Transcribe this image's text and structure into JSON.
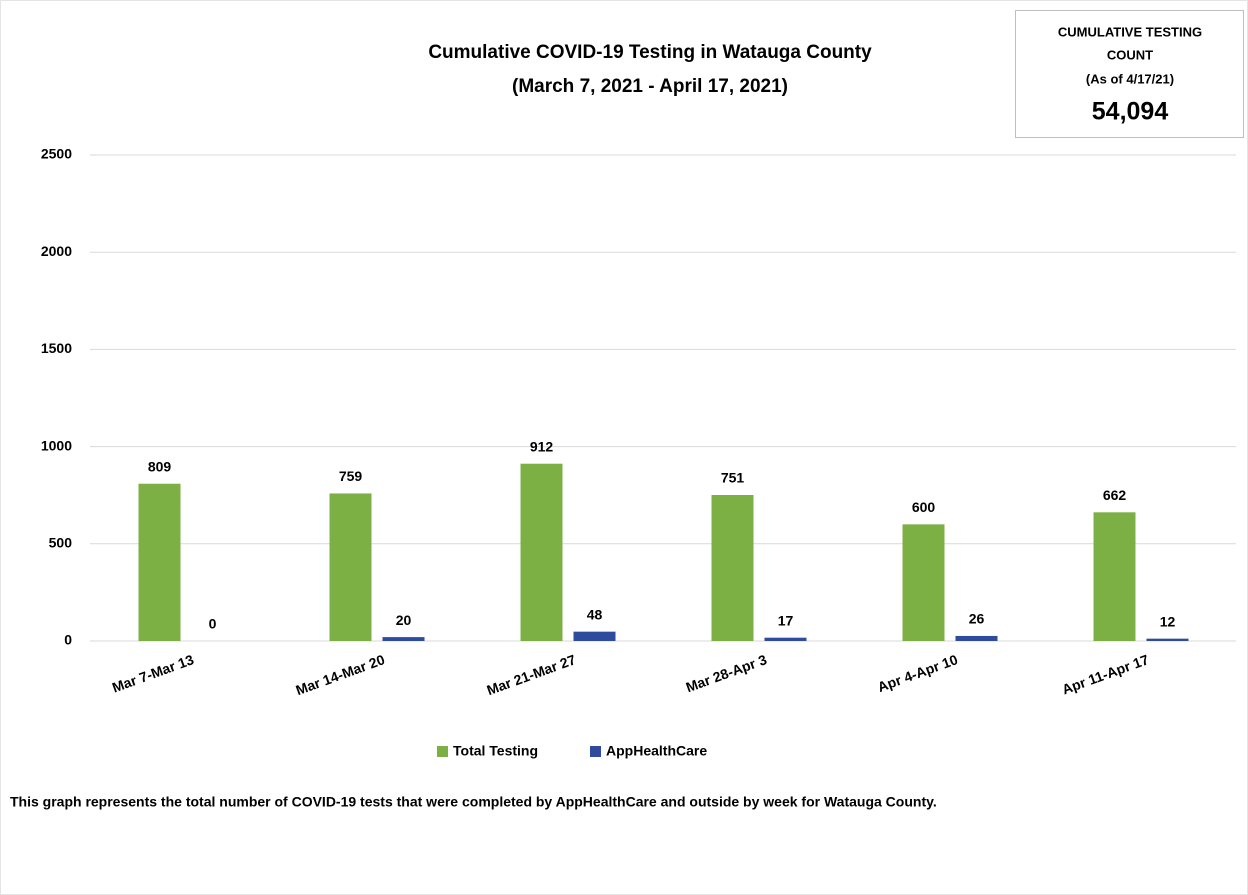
{
  "chart_data": {
    "type": "bar",
    "title": "Cumulative COVID-19 Testing in Watauga County",
    "subtitle": "(March 7, 2021 - April 17, 2021)",
    "annotations": {
      "box_heading_1": "CUMULATIVE TESTING",
      "box_heading_2": "COUNT",
      "box_date": "(As of 4/17/21)",
      "box_value": "54,094"
    },
    "caption": "This graph represents the total number of COVID-19 tests that were completed by AppHealthCare and outside by week for Watauga County.",
    "categories": [
      "Mar 7-Mar 13",
      "Mar 14-Mar 20",
      "Mar 21-Mar 27",
      "Mar 28-Apr 3",
      "Apr 4-Apr 10",
      "Apr 11-Apr 17"
    ],
    "series": [
      {
        "name": "Total Testing",
        "color": "#7cb045",
        "values": [
          809,
          759,
          912,
          751,
          600,
          662
        ]
      },
      {
        "name": "AppHealthCare",
        "color": "#2f4b9e",
        "values": [
          0,
          20,
          48,
          17,
          26,
          12
        ]
      }
    ],
    "ylim": [
      0,
      2500
    ],
    "yticks": [
      0,
      500,
      1000,
      1500,
      2000,
      2500
    ],
    "grid": true,
    "legend": "bottom"
  }
}
